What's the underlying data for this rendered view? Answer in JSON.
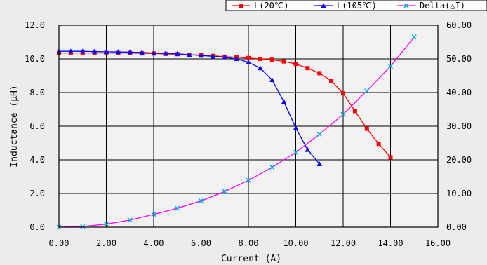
{
  "chart_data": {
    "type": "line",
    "title": "",
    "xlabel": "Current (A)",
    "ylabel_left": "Inductance (μH)",
    "ylabel_right": "",
    "xlim": [
      0,
      16
    ],
    "ylim_left": [
      0,
      12
    ],
    "ylim_right": [
      0,
      60
    ],
    "x_ticks": [
      "0.00",
      "2.00",
      "4.00",
      "6.00",
      "8.00",
      "10.00",
      "12.00",
      "14.00",
      "16.00"
    ],
    "y_left_ticks": [
      "0.0",
      "2.0",
      "4.0",
      "6.0",
      "8.0",
      "10.0",
      "12.0"
    ],
    "y_right_ticks": [
      "0.00",
      "10.00",
      "20.00",
      "30.00",
      "40.00",
      "50.00",
      "60.00"
    ],
    "grid": true,
    "legend_position": "top-right",
    "series": [
      {
        "name": "L(20℃)",
        "axis": "left",
        "color": "#ff0000",
        "marker": "square",
        "x": [
          0,
          0.5,
          1,
          1.5,
          2,
          2.5,
          3,
          3.5,
          4,
          4.5,
          5,
          5.5,
          6,
          6.5,
          7,
          7.5,
          8,
          8.5,
          9,
          9.5,
          10,
          10.5,
          11,
          11.5,
          12,
          12.5,
          13,
          13.5,
          14
        ],
        "y": [
          10.35,
          10.35,
          10.35,
          10.35,
          10.35,
          10.35,
          10.35,
          10.33,
          10.32,
          10.3,
          10.28,
          10.25,
          10.22,
          10.18,
          10.13,
          10.1,
          10.05,
          10.0,
          9.95,
          9.85,
          9.7,
          9.45,
          9.15,
          8.7,
          7.95,
          6.9,
          5.85,
          4.95,
          4.15
        ]
      },
      {
        "name": "L(105℃)",
        "axis": "left",
        "color": "#0000ff",
        "marker": "triangle",
        "x": [
          0,
          0.5,
          1,
          1.5,
          2,
          2.5,
          3,
          3.5,
          4,
          4.5,
          5,
          5.5,
          6,
          6.5,
          7,
          7.5,
          8,
          8.5,
          9,
          9.5,
          10,
          10.5,
          11
        ],
        "y": [
          10.45,
          10.45,
          10.45,
          10.43,
          10.42,
          10.41,
          10.4,
          10.38,
          10.35,
          10.32,
          10.3,
          10.25,
          10.2,
          10.15,
          10.1,
          10.0,
          9.8,
          9.45,
          8.75,
          7.45,
          5.9,
          4.6,
          3.75
        ]
      },
      {
        "name": "Delta(△I)",
        "axis": "right",
        "color": "#ff00ff",
        "marker": "x",
        "x": [
          0,
          1,
          2,
          3,
          4,
          5,
          6,
          7,
          8,
          9,
          10,
          11,
          12,
          13,
          14,
          15
        ],
        "y": [
          0.0,
          0.2,
          0.9,
          2.1,
          3.8,
          5.6,
          7.8,
          10.6,
          13.9,
          17.8,
          22.2,
          27.6,
          33.5,
          40.5,
          47.8,
          56.5
        ]
      }
    ]
  }
}
